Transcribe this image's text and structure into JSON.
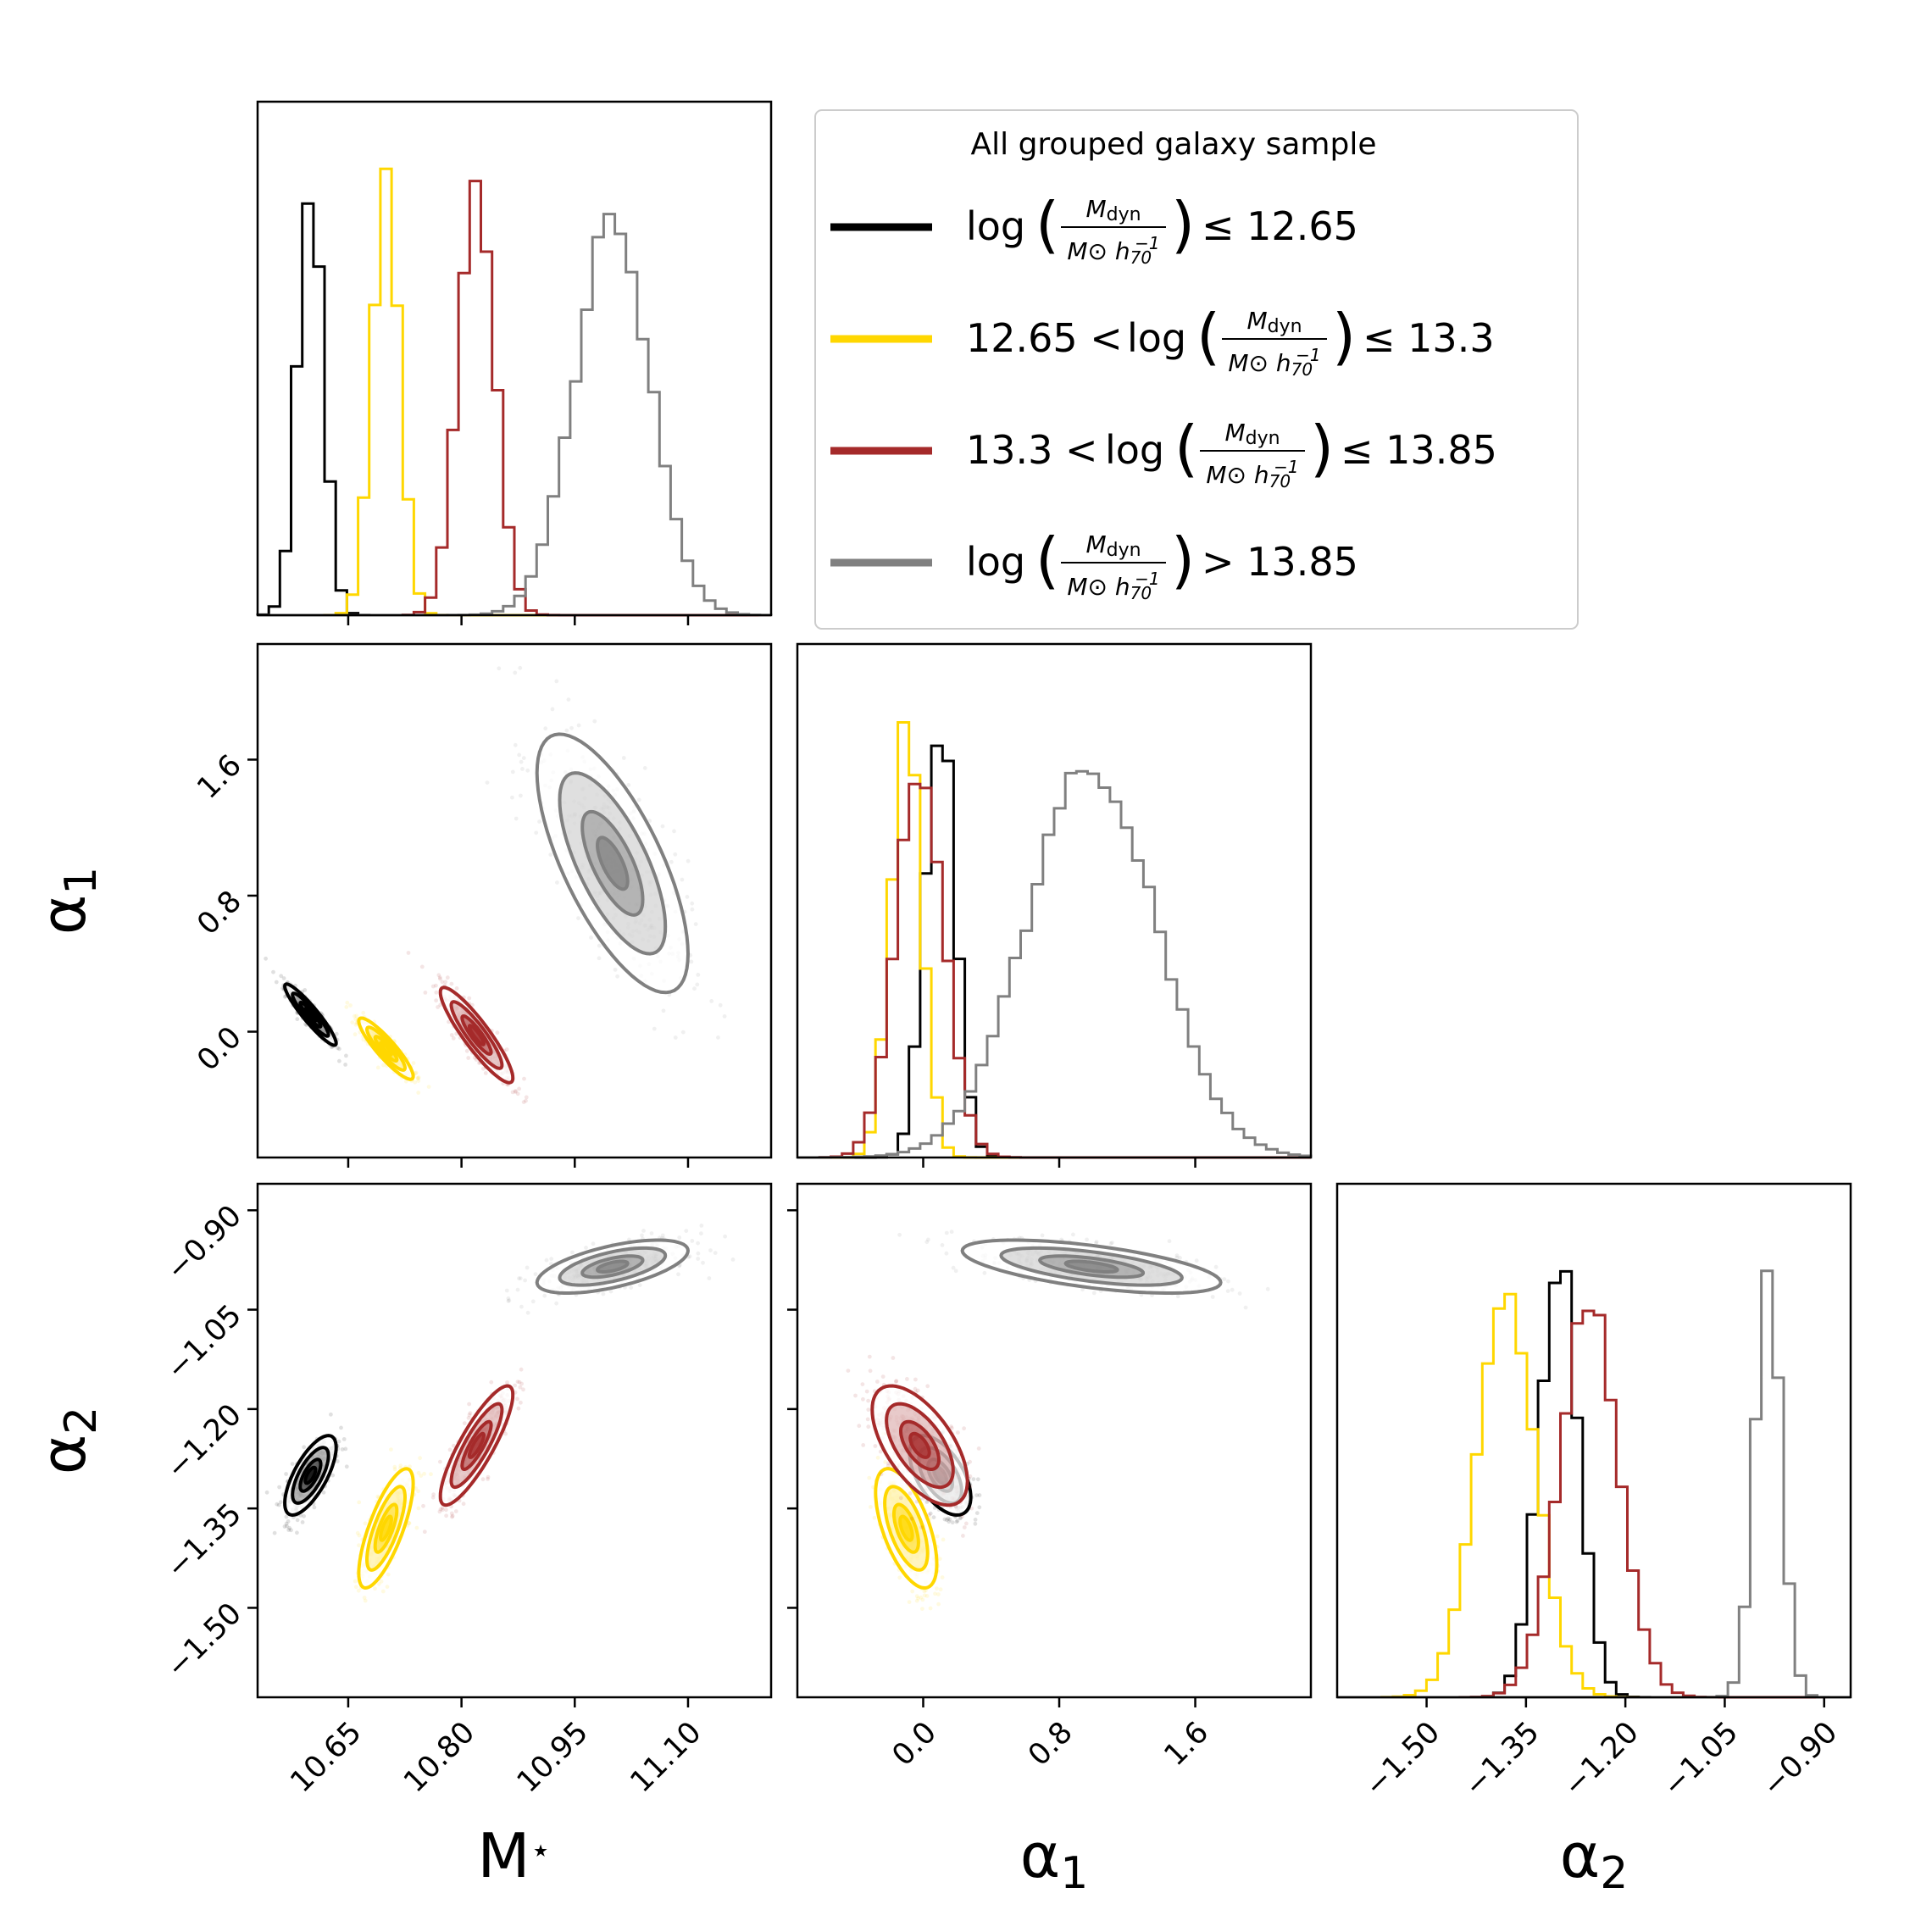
{
  "chart_data": {
    "type": "corner",
    "title": "",
    "legend": {
      "title": "All grouped galaxy sample",
      "placement": "top-right",
      "entries": [
        {
          "id": "s1",
          "prefix": "",
          "suffix": "≤ 12.65"
        },
        {
          "id": "s2",
          "prefix": "12.65 <",
          "suffix": "≤ 13.3"
        },
        {
          "id": "s3",
          "prefix": "13.3 <",
          "suffix": "≤ 13.85"
        },
        {
          "id": "s4",
          "prefix": "",
          "suffix": "> 13.85"
        }
      ],
      "mass_term": {
        "log": "log",
        "numerator": "M",
        "numerator_sub": "dyn",
        "denominator": "M⊙ h",
        "denominator_sub": "70",
        "denominator_sup": "−1"
      }
    },
    "parameters": [
      {
        "id": "mstar",
        "label": "M",
        "label_sup": "⋆",
        "range": [
          10.53,
          11.21
        ],
        "ticks": [
          "10.65",
          "10.80",
          "10.95",
          "11.10"
        ],
        "tick_values": [
          10.65,
          10.8,
          10.95,
          11.1
        ]
      },
      {
        "id": "alpha1",
        "label": "α",
        "label_sub": "1",
        "range": [
          -0.74,
          2.28
        ],
        "ticks": [
          "0.0",
          "0.8",
          "1.6"
        ],
        "tick_values": [
          0.0,
          0.8,
          1.6
        ]
      },
      {
        "id": "alpha2",
        "label": "α",
        "label_sub": "2",
        "range": [
          -1.635,
          -0.86
        ],
        "ticks": [
          "−1.50",
          "−1.35",
          "−1.20",
          "−1.05",
          "−0.90"
        ],
        "tick_values": [
          -1.5,
          -1.35,
          -1.2,
          -1.05,
          -0.9
        ]
      }
    ],
    "series": [
      {
        "id": "s1",
        "color": "#000000",
        "mean": [
          10.6,
          0.1,
          -1.3
        ],
        "sigma": [
          0.017,
          0.09,
          0.03
        ],
        "corr": [
          -0.93,
          0.7,
          -0.55
        ]
      },
      {
        "id": "s2",
        "color": "#ffd700",
        "mean": [
          10.7,
          -0.1,
          -1.38
        ],
        "sigma": [
          0.018,
          0.09,
          0.045
        ],
        "corr": [
          -0.9,
          0.75,
          -0.6
        ]
      },
      {
        "id": "s3",
        "color": "#a52a2a",
        "mean": [
          10.82,
          -0.02,
          -1.255
        ],
        "sigma": [
          0.024,
          0.14,
          0.045
        ],
        "corr": [
          -0.9,
          0.85,
          -0.6
        ]
      },
      {
        "id": "s4",
        "color": "#808080",
        "mean": [
          11.0,
          0.99,
          -0.985
        ],
        "sigma": [
          0.05,
          0.38,
          0.02
        ],
        "corr": [
          -0.7,
          0.6,
          -0.6
        ]
      }
    ]
  }
}
